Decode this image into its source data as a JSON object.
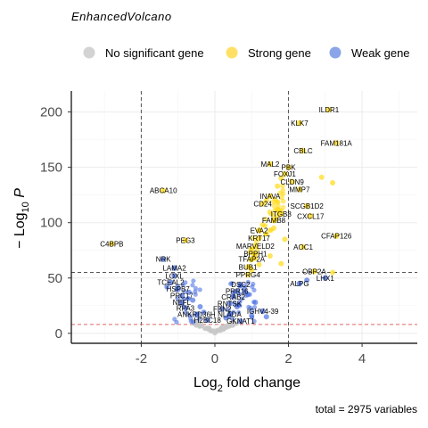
{
  "chart_data": {
    "type": "scatter",
    "title": "EnhancedVolcano",
    "caption": "total = 2975 variables",
    "xlabel_main": "Log",
    "xlabel_sub": "2",
    "xlabel_rest": " fold change",
    "ylabel_prefix": "− Log",
    "ylabel_sub": "10",
    "ylabel_var": " P",
    "xlim": [
      -3.9,
      5.5
    ],
    "ylim": [
      -9,
      219
    ],
    "x_ticks": [
      -2,
      0,
      2,
      4
    ],
    "x_tick_labels": [
      "-2",
      "0",
      "2",
      "4"
    ],
    "y_ticks": [
      0,
      50,
      100,
      150,
      200
    ],
    "y_tick_labels": [
      "0",
      "50",
      "100",
      "150",
      "200"
    ],
    "thresholds": {
      "fc_low": -2,
      "fc_high": 2,
      "p_line": 55,
      "p_red": 8
    },
    "legend": {
      "position": "top",
      "items": [
        {
          "label": "No significant gene",
          "color": "#d3d3d3"
        },
        {
          "label": "Strong gene",
          "color": "#ffe066"
        },
        {
          "label": "Weak gene",
          "color": "#8aa4e8"
        }
      ]
    },
    "colors": {
      "none": "#c8c8c8",
      "strong": "#ffd700",
      "weak": "#4169e1"
    },
    "labeled_points": [
      {
        "label": "ILDR1",
        "x": 3.1,
        "y": 202,
        "cat": "strong"
      },
      {
        "label": "KLK7",
        "x": 2.3,
        "y": 190,
        "cat": "strong"
      },
      {
        "label": "FAM181A",
        "x": 3.3,
        "y": 172,
        "cat": "strong"
      },
      {
        "label": "CBLC",
        "x": 2.4,
        "y": 165,
        "cat": "strong"
      },
      {
        "label": "MAL2",
        "x": 1.5,
        "y": 153,
        "cat": "strong"
      },
      {
        "label": "PBK",
        "x": 2.0,
        "y": 150,
        "cat": "strong"
      },
      {
        "label": "FOXJ1",
        "x": 1.9,
        "y": 144,
        "cat": "strong"
      },
      {
        "label": "CLDN9",
        "x": 2.1,
        "y": 137,
        "cat": "strong"
      },
      {
        "label": "MMP7",
        "x": 2.3,
        "y": 130,
        "cat": "strong"
      },
      {
        "label": "ABCA10",
        "x": -1.4,
        "y": 129,
        "cat": "strong"
      },
      {
        "label": "INAVA",
        "x": 1.5,
        "y": 124,
        "cat": "strong"
      },
      {
        "label": "CD24",
        "x": 1.3,
        "y": 117,
        "cat": "strong"
      },
      {
        "label": "SCGB1D2",
        "x": 2.5,
        "y": 115,
        "cat": "strong"
      },
      {
        "label": "ITGB8",
        "x": 1.8,
        "y": 108,
        "cat": "strong"
      },
      {
        "label": "CXCL17",
        "x": 2.6,
        "y": 106,
        "cat": "strong"
      },
      {
        "label": "FAMB8",
        "x": 1.6,
        "y": 102,
        "cat": "strong"
      },
      {
        "label": "EVA2",
        "x": 1.2,
        "y": 93,
        "cat": "strong"
      },
      {
        "label": "CFAP126",
        "x": 3.3,
        "y": 88,
        "cat": "strong"
      },
      {
        "label": "KRT17",
        "x": 1.2,
        "y": 86,
        "cat": "strong"
      },
      {
        "label": "PEG3",
        "x": -0.8,
        "y": 84,
        "cat": "strong"
      },
      {
        "label": "C4BPB",
        "x": -2.8,
        "y": 81,
        "cat": "strong"
      },
      {
        "label": "MARVELD2",
        "x": 1.1,
        "y": 79,
        "cat": "strong"
      },
      {
        "label": "AOC1",
        "x": 2.4,
        "y": 78,
        "cat": "strong"
      },
      {
        "label": "BPPH1",
        "x": 1.1,
        "y": 72,
        "cat": "strong"
      },
      {
        "label": "TFAP2A",
        "x": 1.0,
        "y": 67,
        "cat": "strong"
      },
      {
        "label": "NRK",
        "x": -1.4,
        "y": 67,
        "cat": "weak"
      },
      {
        "label": "BUB1",
        "x": 0.9,
        "y": 60,
        "cat": "strong"
      },
      {
        "label": "LAMA2",
        "x": -1.1,
        "y": 59,
        "cat": "weak"
      },
      {
        "label": "OBP2A",
        "x": 2.7,
        "y": 56,
        "cat": "strong"
      },
      {
        "label": "PPRG4",
        "x": 0.9,
        "y": 53,
        "cat": "strong"
      },
      {
        "label": "LOXL",
        "x": -1.1,
        "y": 52,
        "cat": "weak"
      },
      {
        "label": "LHX1",
        "x": 3.0,
        "y": 50,
        "cat": "weak"
      },
      {
        "label": "TCEAL2",
        "x": -1.2,
        "y": 46,
        "cat": "weak"
      },
      {
        "label": "ALPG",
        "x": 2.3,
        "y": 45,
        "cat": "weak"
      },
      {
        "label": "DSC2",
        "x": 0.7,
        "y": 44,
        "cat": "weak"
      },
      {
        "label": "HSPB7",
        "x": -1.0,
        "y": 40,
        "cat": "weak"
      },
      {
        "label": "PRR16",
        "x": 0.6,
        "y": 38,
        "cat": "weak"
      },
      {
        "label": "PRC17",
        "x": -0.9,
        "y": 34,
        "cat": "weak"
      },
      {
        "label": "CRAB2",
        "x": 0.5,
        "y": 33,
        "cat": "weak"
      },
      {
        "label": "NEFL",
        "x": -0.9,
        "y": 28,
        "cat": "weak"
      },
      {
        "label": "RNTSK",
        "x": 0.4,
        "y": 27,
        "cat": "weak"
      },
      {
        "label": "RPA3",
        "x": -0.8,
        "y": 23,
        "cat": "weak"
      },
      {
        "label": "FBN2",
        "x": 0.2,
        "y": 22,
        "cat": "weak"
      },
      {
        "label": "IGHV4-39",
        "x": 1.3,
        "y": 20,
        "cat": "weak"
      },
      {
        "label": "ANKRD36H",
        "x": -0.5,
        "y": 17,
        "cat": "weak"
      },
      {
        "label": "NLADA",
        "x": 0.4,
        "y": 17,
        "cat": "weak"
      },
      {
        "label": "H2BC18",
        "x": -0.2,
        "y": 12,
        "cat": "weak"
      },
      {
        "label": "GKNAT1",
        "x": 0.7,
        "y": 11,
        "cat": "weak"
      }
    ],
    "extra_points": [
      {
        "x": 2.9,
        "y": 141,
        "cat": "strong"
      },
      {
        "x": 3.2,
        "y": 136,
        "cat": "strong"
      },
      {
        "x": 1.8,
        "y": 140,
        "cat": "strong"
      },
      {
        "x": 1.7,
        "y": 133,
        "cat": "strong"
      },
      {
        "x": 1.4,
        "y": 120,
        "cat": "strong"
      },
      {
        "x": 1.7,
        "y": 112,
        "cat": "strong"
      },
      {
        "x": 1.3,
        "y": 98,
        "cat": "strong"
      },
      {
        "x": 1.6,
        "y": 95,
        "cat": "strong"
      },
      {
        "x": 1.4,
        "y": 90,
        "cat": "strong"
      },
      {
        "x": 1.9,
        "y": 85,
        "cat": "strong"
      },
      {
        "x": 1.0,
        "y": 76,
        "cat": "strong"
      },
      {
        "x": 1.5,
        "y": 70,
        "cat": "strong"
      },
      {
        "x": 1.8,
        "y": 63,
        "cat": "strong"
      },
      {
        "x": 1.2,
        "y": 62,
        "cat": "strong"
      },
      {
        "x": 1.0,
        "y": 57,
        "cat": "strong"
      },
      {
        "x": 3.2,
        "y": 55,
        "cat": "strong"
      },
      {
        "x": -1.3,
        "y": 42,
        "cat": "weak"
      },
      {
        "x": -0.7,
        "y": 37,
        "cat": "weak"
      },
      {
        "x": -0.6,
        "y": 30,
        "cat": "weak"
      },
      {
        "x": -0.4,
        "y": 24,
        "cat": "weak"
      },
      {
        "x": 0.8,
        "y": 40,
        "cat": "weak"
      },
      {
        "x": 0.9,
        "y": 35,
        "cat": "weak"
      },
      {
        "x": 0.6,
        "y": 24,
        "cat": "weak"
      },
      {
        "x": 1.1,
        "y": 28,
        "cat": "weak"
      },
      {
        "x": 1.0,
        "y": 16,
        "cat": "weak"
      },
      {
        "x": 1.4,
        "y": 15,
        "cat": "weak"
      },
      {
        "x": 0.3,
        "y": 14,
        "cat": "weak"
      },
      {
        "x": -0.3,
        "y": 19,
        "cat": "weak"
      },
      {
        "x": 2.5,
        "y": 48,
        "cat": "weak"
      }
    ]
  }
}
